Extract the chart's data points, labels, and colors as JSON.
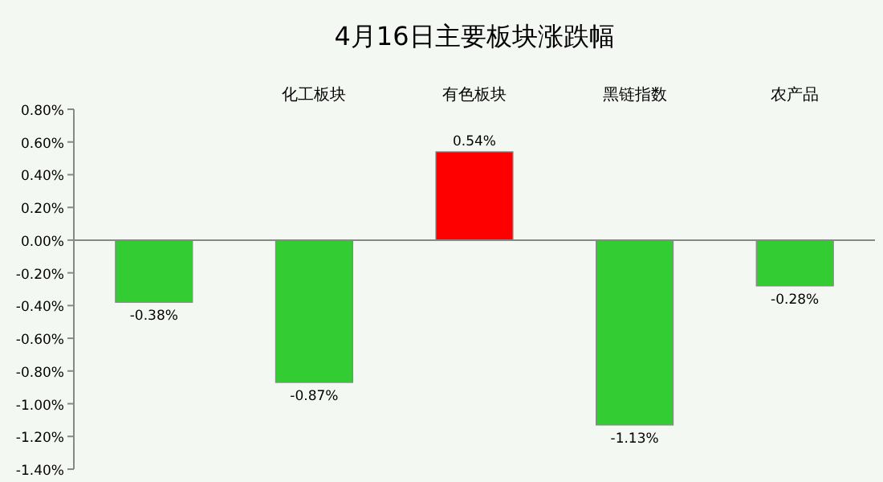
{
  "chart_data": {
    "type": "bar",
    "title": "4月16日主要板块涨跌幅",
    "categories": [
      null,
      "化工板块",
      "有色板块",
      "黑链指数",
      "农产品"
    ],
    "values": [
      -0.38,
      -0.87,
      0.54,
      -1.13,
      -0.28
    ],
    "colors": [
      "#33cc33",
      "#33cc33",
      "#ff0000",
      "#33cc33",
      "#33cc33"
    ],
    "value_labels": [
      "-0.38%",
      "-0.87%",
      "0.54%",
      "-1.13%",
      "-0.28%"
    ],
    "ylim": [
      -1.4,
      0.8
    ],
    "yticks": [
      {
        "value": 0.8,
        "label": "0.80%"
      },
      {
        "value": 0.6,
        "label": "0.60%"
      },
      {
        "value": 0.4,
        "label": "0.40%"
      },
      {
        "value": 0.2,
        "label": "0.20%"
      },
      {
        "value": 0,
        "label": "0.00%"
      },
      {
        "value": -0.2,
        "label": "-0.20%"
      },
      {
        "value": -0.4,
        "label": "-0.40%"
      },
      {
        "value": -0.6,
        "label": "-0.60%"
      },
      {
        "value": -0.8,
        "label": "-0.80%"
      },
      {
        "value": -1.0,
        "label": "-1.00%"
      },
      {
        "value": -1.2,
        "label": "-1.20%"
      },
      {
        "value": -1.4,
        "label": "-1.40%"
      }
    ]
  }
}
